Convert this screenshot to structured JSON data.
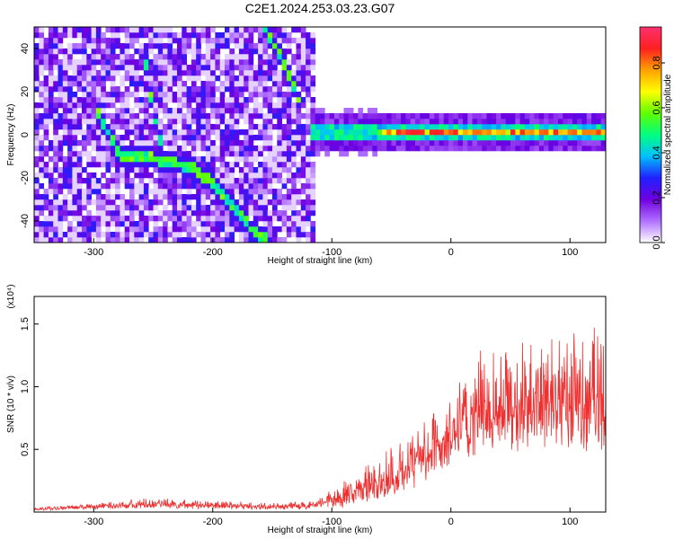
{
  "chart_data": [
    {
      "type": "heatmap",
      "title": "C2E1.2024.253.03.23.G07",
      "xlabel": "Height of straight line (km)",
      "ylabel": "Frequency (Hz)",
      "xlim": [
        -350,
        130
      ],
      "ylim": [
        -50,
        50
      ],
      "x_ticks": [
        "-300",
        "-200",
        "-100",
        "0",
        "100"
      ],
      "y_ticks": [
        "-40",
        "-20",
        "0",
        "20",
        "40"
      ],
      "colorbar": {
        "label": "Normalized spectral amplitude",
        "range": [
          0,
          0.96
        ],
        "ticks": [
          "0.0",
          "0.2",
          "0.4",
          "0.6",
          "0.8"
        ],
        "colors": [
          "#ffffff",
          "#b070ff",
          "#7000e0",
          "#2020ff",
          "#00c0ff",
          "#00ff80",
          "#60ff00",
          "#ffff00",
          "#ffa000",
          "#ff2020",
          "#ff3070"
        ]
      },
      "features": {
        "noise_region_x": [
          -350,
          -115
        ],
        "stable_line": {
          "x": [
            -120,
            130
          ],
          "freq": 0,
          "peak_amplitude": 0.9
        },
        "descending_traces": [
          {
            "x": [
              -300,
              -280,
              -255,
              -235,
              -215,
              -200,
              -185,
              -170,
              -155
            ],
            "freq": [
              10,
              -10,
              -12,
              -14,
              -18,
              -25,
              -35,
              -45,
              -50
            ]
          },
          {
            "x": [
              -260,
              -255,
              -250,
              -245
            ],
            "freq": [
              38,
              20,
              5,
              -5
            ]
          },
          {
            "x": [
              -160,
              -150,
              -140,
              -130
            ],
            "freq": [
              50,
              40,
              30,
              15
            ]
          }
        ]
      },
      "grid": false,
      "legend": "none"
    },
    {
      "type": "line",
      "xlabel": "Height of straight line (km)",
      "ylabel": "SNR (10 * v/v)",
      "y_multiplier": "(x10⁴)",
      "xlim": [
        -350,
        130
      ],
      "ylim": [
        0,
        1.72
      ],
      "x_ticks": [
        "-300",
        "-200",
        "-100",
        "0",
        "100"
      ],
      "y_ticks": [
        "0.5",
        "1.0",
        "1.5"
      ],
      "series": [
        {
          "color": "#ee3030",
          "envelope_x": [
            -350,
            -300,
            -250,
            -200,
            -150,
            -120,
            -100,
            -80,
            -60,
            -40,
            -20,
            -10,
            0,
            20,
            40,
            60,
            80,
            100,
            130
          ],
          "envelope_low": [
            0.01,
            0.02,
            0.03,
            0.02,
            0.02,
            0.02,
            0.03,
            0.05,
            0.08,
            0.12,
            0.25,
            0.3,
            0.35,
            0.45,
            0.5,
            0.45,
            0.5,
            0.45,
            0.5
          ],
          "envelope_high": [
            0.04,
            0.08,
            0.12,
            0.1,
            0.08,
            0.09,
            0.2,
            0.35,
            0.5,
            0.6,
            0.8,
            0.95,
            1.0,
            1.3,
            1.45,
            1.5,
            1.55,
            1.6,
            1.65
          ]
        }
      ],
      "grid": false,
      "legend": "none"
    }
  ]
}
